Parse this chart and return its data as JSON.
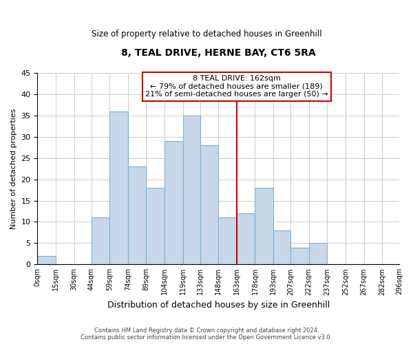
{
  "title": "8, TEAL DRIVE, HERNE BAY, CT6 5RA",
  "subtitle": "Size of property relative to detached houses in Greenhill",
  "xlabel": "Distribution of detached houses by size in Greenhill",
  "ylabel": "Number of detached properties",
  "bin_edges": [
    0,
    15,
    30,
    44,
    59,
    74,
    89,
    104,
    119,
    133,
    148,
    163,
    178,
    193,
    207,
    222,
    237,
    252,
    267,
    282,
    296
  ],
  "counts": [
    2,
    0,
    0,
    11,
    36,
    23,
    18,
    29,
    35,
    28,
    11,
    12,
    18,
    8,
    4,
    5,
    0,
    0,
    0,
    0
  ],
  "bar_color": "#c8d8e8",
  "bar_edgecolor": "#7ab0d4",
  "vline_x": 163,
  "vline_color": "#cc0000",
  "annotation_text": "8 TEAL DRIVE: 162sqm\n← 79% of detached houses are smaller (189)\n21% of semi-detached houses are larger (50) →",
  "annotation_box_edgecolor": "#cc0000",
  "annotation_box_facecolor": "#ffffff",
  "tick_labels": [
    "0sqm",
    "15sqm",
    "30sqm",
    "44sqm",
    "59sqm",
    "74sqm",
    "89sqm",
    "104sqm",
    "119sqm",
    "133sqm",
    "148sqm",
    "163sqm",
    "178sqm",
    "193sqm",
    "207sqm",
    "222sqm",
    "237sqm",
    "252sqm",
    "267sqm",
    "282sqm",
    "296sqm"
  ],
  "ylim": [
    0,
    45
  ],
  "yticks": [
    0,
    5,
    10,
    15,
    20,
    25,
    30,
    35,
    40,
    45
  ],
  "footnote": "Contains HM Land Registry data © Crown copyright and database right 2024.\nContains public sector information licensed under the Open Government Licence v3.0.",
  "background_color": "#ffffff",
  "grid_color": "#cccccc",
  "figsize": [
    6.0,
    5.0
  ],
  "dpi": 100
}
